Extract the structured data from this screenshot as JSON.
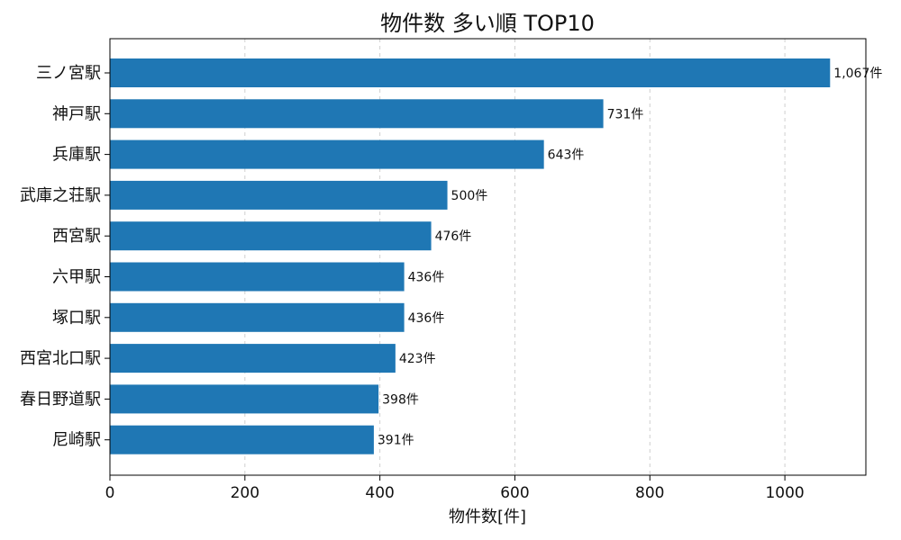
{
  "chart_data": {
    "type": "bar",
    "orientation": "horizontal",
    "title": "物件数 多い順 TOP10",
    "xlabel": "物件数[件]",
    "ylabel": "",
    "categories": [
      "三ノ宮駅",
      "神戸駅",
      "兵庫駅",
      "武庫之荘駅",
      "西宮駅",
      "六甲駅",
      "塚口駅",
      "西宮北口駅",
      "春日野道駅",
      "尼崎駅"
    ],
    "values": [
      1067,
      731,
      643,
      500,
      476,
      436,
      436,
      423,
      398,
      391
    ],
    "data_labels": [
      "1,067件",
      "731件",
      "643件",
      "500件",
      "476件",
      "436件",
      "436件",
      "423件",
      "398件",
      "391件"
    ],
    "xlim": [
      0,
      1120
    ],
    "xticks": [
      0,
      200,
      400,
      600,
      800,
      1000
    ],
    "xtick_labels": [
      "0",
      "200",
      "400",
      "600",
      "800",
      "1000"
    ],
    "grid": "x-axis dashed",
    "bar_color": "#1f77b4"
  }
}
